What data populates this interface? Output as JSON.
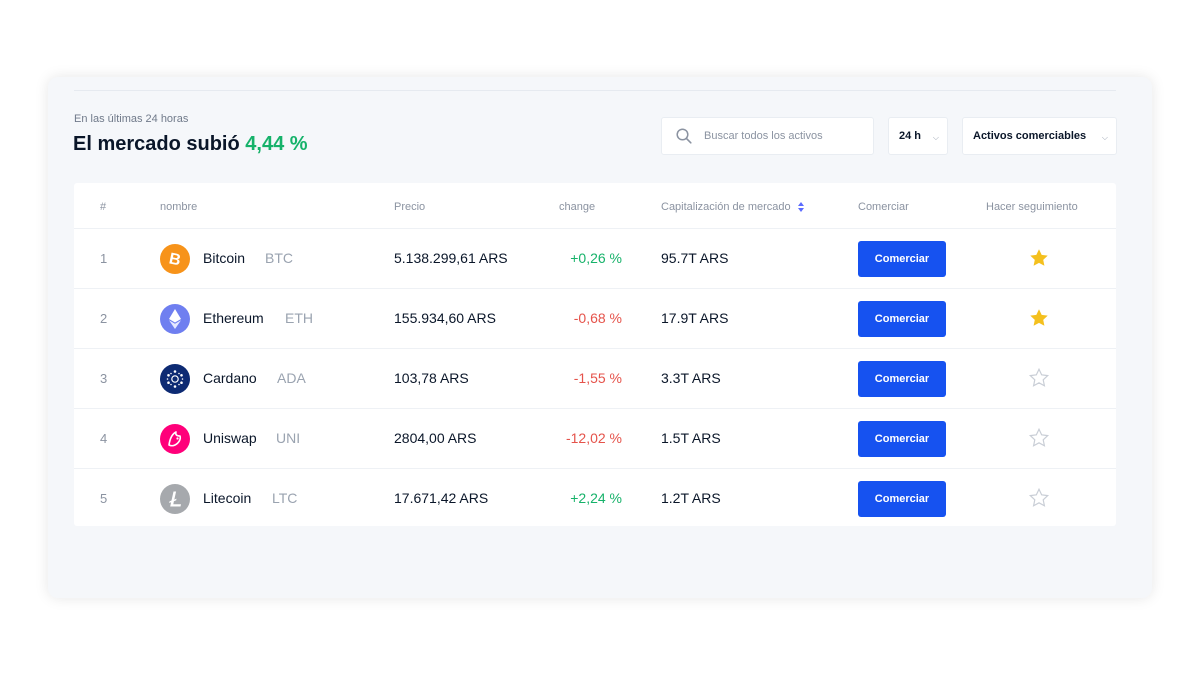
{
  "market": {
    "subtitle": "En las últimas 24 horas",
    "headline_prefix": "El mercado subió",
    "headline_pct": "4,44 %"
  },
  "search": {
    "placeholder": "Buscar todos los activos",
    "icon": "search-icon"
  },
  "filters": {
    "period": "24 h",
    "asset_type": "Activos comerciables"
  },
  "table": {
    "columns": {
      "rank": "#",
      "name": "nombre",
      "price": "Precio",
      "change": "change",
      "market_cap": "Capitalización de mercado",
      "trade": "Comerciar",
      "watch": "Hacer seguimiento"
    },
    "trade_label": "Comerciar",
    "rows": [
      {
        "rank": "1",
        "name": "Bitcoin",
        "symbol": "BTC",
        "price": "5.138.299,61 ARS",
        "change": "+0,26 %",
        "change_color": "#16b26a",
        "market_cap": "95.7T ARS",
        "watched": true,
        "icon_color": "#f7931a"
      },
      {
        "rank": "2",
        "name": "Ethereum",
        "symbol": "ETH",
        "price": "155.934,60 ARS",
        "change": "-0,68 %",
        "change_color": "#e5534b",
        "market_cap": "17.9T ARS",
        "watched": true,
        "icon_color": "#6f7ff0"
      },
      {
        "rank": "3",
        "name": "Cardano",
        "symbol": "ADA",
        "price": "103,78 ARS",
        "change": "-1,55 %",
        "change_color": "#e5534b",
        "market_cap": "3.3T ARS",
        "watched": false,
        "icon_color": "#0d2a73"
      },
      {
        "rank": "4",
        "name": "Uniswap",
        "symbol": "UNI",
        "price": "2804,00 ARS",
        "change": "-12,02 %",
        "change_color": "#e5534b",
        "market_cap": "1.5T ARS",
        "watched": false,
        "icon_color": "#ff007a"
      },
      {
        "rank": "5",
        "name": "Litecoin",
        "symbol": "LTC",
        "price": "17.671,42 ARS",
        "change": "+2,24 %",
        "change_color": "#16b26a",
        "market_cap": "1.2T ARS",
        "watched": false,
        "icon_color": "#a6a9ad"
      }
    ]
  },
  "colors": {
    "accent": "#1652f0",
    "positive": "#16b26a",
    "negative": "#e5534b",
    "star_active": "#f4c01e",
    "star_inactive": "#c9ced6"
  }
}
